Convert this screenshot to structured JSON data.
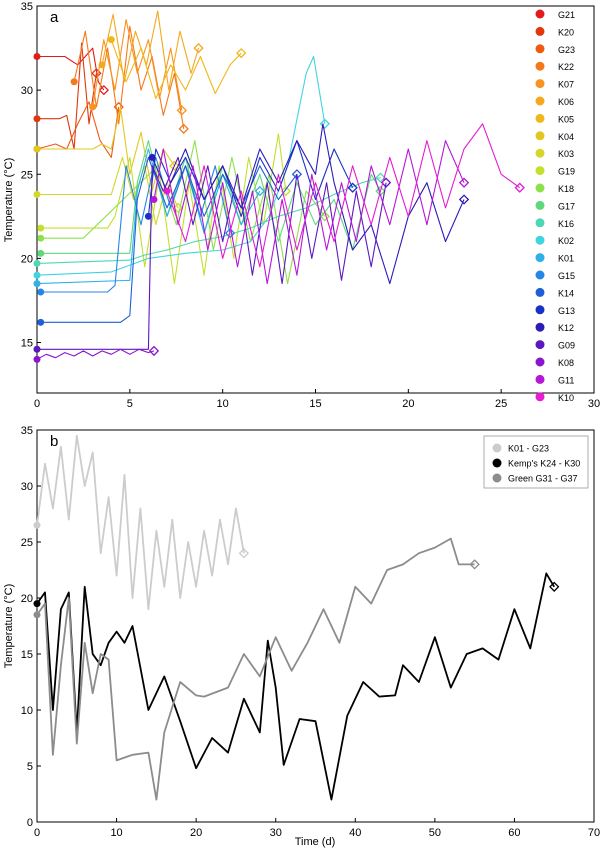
{
  "figure": {
    "panels": [
      {
        "label": "a",
        "ylabel": "Temperature (°C)",
        "xlabel": "",
        "xticks": [
          "0",
          "5",
          "10",
          "15",
          "20",
          "25",
          "30"
        ],
        "yticks": [
          "15",
          "20",
          "25",
          "30",
          "35"
        ]
      },
      {
        "label": "b",
        "ylabel": "Temperature (°C)",
        "xlabel": "Time (d)",
        "xticks": [
          "0",
          "10",
          "20",
          "30",
          "40",
          "50",
          "60",
          "70"
        ],
        "yticks": [
          "0",
          "5",
          "10",
          "15",
          "20",
          "25",
          "30",
          "35"
        ]
      }
    ]
  },
  "chart_data": [
    {
      "type": "line",
      "panel": "a",
      "xlim": [
        0,
        30
      ],
      "ylim": [
        12,
        35
      ],
      "ylabel": "Temperature (°C)",
      "legend": "right",
      "grid": false,
      "series": [
        {
          "name": "G21",
          "color": "#e31a1c",
          "x": [
            0,
            1.5,
            2.2,
            3.0,
            3.3,
            3.6
          ],
          "y": [
            32,
            32,
            31.5,
            32.5,
            30.5,
            30.0
          ]
        },
        {
          "name": "K20",
          "color": "#e3360c",
          "x": [
            0,
            0.8,
            1.2,
            1.6,
            2.0,
            2.4,
            2.8,
            3.2
          ],
          "y": [
            28.3,
            28.3,
            28.3,
            28.5,
            26.5,
            32.8,
            28.0,
            31.0
          ]
        },
        {
          "name": "G23",
          "color": "#ef5a10",
          "x": [
            0,
            1.0,
            1.6,
            2.2,
            2.8,
            3.4,
            4.0,
            4.4
          ],
          "y": [
            26.5,
            26.8,
            26.5,
            28.0,
            29.3,
            27.0,
            26.0,
            29.0
          ]
        },
        {
          "name": "K22",
          "color": "#f5781a",
          "x": [
            2.0,
            2.6,
            3.2,
            3.8,
            4.4,
            5.0,
            5.6,
            6.2,
            6.8,
            7.4,
            7.9
          ],
          "y": [
            30.5,
            33.5,
            29.0,
            32.5,
            28.0,
            33.8,
            30.0,
            32.0,
            28.5,
            31.0,
            27.7
          ]
        },
        {
          "name": "K07",
          "color": "#f8931e",
          "x": [
            3.0,
            3.6,
            4.2,
            4.8,
            5.4,
            6.0,
            6.6,
            7.2,
            7.8
          ],
          "y": [
            29.0,
            33.0,
            30.0,
            34.2,
            31.0,
            33.0,
            29.5,
            32.5,
            28.8
          ]
        },
        {
          "name": "K06",
          "color": "#f6a81c",
          "x": [
            3.5,
            4.1,
            4.7,
            5.3,
            5.9,
            6.5,
            7.1,
            7.7,
            8.3,
            8.7
          ],
          "y": [
            31.5,
            34.5,
            30.5,
            33.5,
            31.5,
            34.7,
            30.0,
            33.5,
            31.0,
            32.5
          ]
        },
        {
          "name": "K05",
          "color": "#efb81a",
          "x": [
            4.0,
            4.8,
            5.6,
            6.4,
            7.2,
            8.0,
            8.8,
            9.6,
            10.4,
            11.0
          ],
          "y": [
            33.0,
            30.5,
            32.5,
            29.5,
            31.5,
            30.0,
            32.0,
            29.8,
            31.5,
            32.2
          ]
        },
        {
          "name": "K04",
          "color": "#e2c81e",
          "x": [
            0,
            3.0,
            3.5,
            4.0,
            4.5,
            5.0,
            5.6,
            6.2,
            6.8,
            7.4
          ],
          "y": [
            26.5,
            26.5,
            26.8,
            26.5,
            29.0,
            25.0,
            27.5,
            24.0,
            26.5,
            25.5
          ]
        },
        {
          "name": "K03",
          "color": "#d4d628",
          "x": [
            0,
            3.5,
            4.0,
            4.6,
            5.2,
            5.8,
            6.4,
            7.0,
            7.6
          ],
          "y": [
            23.8,
            23.8,
            23.8,
            26.0,
            23.5,
            25.5,
            22.0,
            24.5,
            23.0
          ]
        },
        {
          "name": "G19",
          "color": "#c2e02e",
          "x": [
            0.2,
            3.8,
            4.2,
            5.0,
            5.8,
            6.6,
            7.4,
            8.2,
            9.0,
            9.8,
            10.6,
            11.4,
            12.2,
            13.0,
            13.4
          ],
          "y": [
            21.8,
            21.8,
            22.5,
            26.0,
            19.5,
            25.0,
            18.5,
            24.5,
            19.0,
            25.5,
            20.0,
            26.0,
            22.0,
            27.4,
            24.0
          ]
        },
        {
          "name": "K18",
          "color": "#8ee04a",
          "x": [
            0.2,
            2.5,
            6.5,
            7.5,
            8.5,
            9.5,
            10.5,
            11.5,
            12.5,
            13.5,
            14.5,
            15.5
          ],
          "y": [
            21.2,
            21.2,
            25.5,
            22.0,
            27.0,
            20.5,
            26.0,
            21.0,
            25.0,
            18.5,
            24.0,
            22.5
          ]
        },
        {
          "name": "G17",
          "color": "#5fd87a",
          "x": [
            0.2,
            5.0,
            5.4,
            6.0,
            7.0,
            8.0,
            9.0,
            10.0,
            11.0,
            12.0,
            13.0,
            14.0,
            15.0,
            16.0,
            17.0,
            18.0,
            18.5
          ],
          "y": [
            20.3,
            20.3,
            24.5,
            27.0,
            22.5,
            26.0,
            21.5,
            25.5,
            22.0,
            25.0,
            21.0,
            24.5,
            22.0,
            23.5,
            20.5,
            25.0,
            24.0
          ]
        },
        {
          "name": "K16",
          "color": "#4cd8b5",
          "x": [
            0,
            5.0,
            5.8,
            7.0,
            8.5,
            10.0,
            11.5,
            13.0,
            14.5,
            16.0,
            17.5,
            18.5
          ],
          "y": [
            19.7,
            19.9,
            20.2,
            20.5,
            21.0,
            21.3,
            21.8,
            22.5,
            23.0,
            23.8,
            24.5,
            24.8
          ]
        },
        {
          "name": "K02",
          "color": "#40d4e0",
          "x": [
            0,
            4.0,
            6.0,
            8.0,
            10.0,
            11.5,
            12.5,
            13.5,
            14.5,
            14.9,
            15.5
          ],
          "y": [
            19.0,
            19.2,
            20.0,
            20.3,
            20.5,
            21.0,
            22.5,
            25.5,
            31.0,
            32.0,
            28.0
          ]
        },
        {
          "name": "K01",
          "color": "#2eb0ea",
          "x": [
            0,
            5.0,
            5.4,
            6.0,
            7.0,
            8.0,
            9.0,
            10.0,
            11.0,
            12.0
          ],
          "y": [
            18.5,
            18.7,
            24.0,
            26.5,
            22.5,
            25.5,
            21.5,
            25.0,
            22.0,
            24.0
          ]
        },
        {
          "name": "G15",
          "color": "#2586e6",
          "x": [
            0.2,
            3.8,
            4.2,
            4.8,
            5.6,
            6.4,
            7.2,
            8.0,
            8.8,
            9.6,
            10.4
          ],
          "y": [
            18.0,
            18.0,
            18.4,
            25.5,
            22.0,
            26.0,
            23.0,
            25.5,
            22.5,
            25.5,
            21.5
          ]
        },
        {
          "name": "K14",
          "color": "#1e5fd8",
          "x": [
            0.2,
            4.5,
            5.0,
            5.4,
            6.0,
            7.0,
            8.0,
            9.0,
            10.0,
            11.0,
            12.0,
            13.0,
            14.0
          ],
          "y": [
            16.2,
            16.2,
            16.6,
            23.5,
            26.0,
            23.0,
            25.5,
            22.5,
            25.0,
            23.0,
            25.5,
            23.5,
            25.0
          ]
        },
        {
          "name": "G13",
          "color": "#1832c8",
          "x": [
            6.0,
            6.4,
            7.2,
            8.0,
            9.0,
            10.0,
            11.0,
            12.0,
            13.0,
            14.0,
            15.0,
            16.0,
            17.0
          ],
          "y": [
            22.5,
            26.5,
            24.5,
            26.0,
            23.5,
            25.5,
            22.5,
            26.0,
            24.0,
            27.0,
            23.5,
            26.5,
            24.2
          ]
        },
        {
          "name": "K12",
          "color": "#2c1cb8",
          "x": [
            6.2,
            7.0,
            8.0,
            9.0,
            10.0,
            11.0,
            12.0,
            13.0,
            14.0,
            15.0,
            15.4,
            16.0,
            17.0,
            18.0,
            19.0,
            20.0,
            21.0,
            22.0,
            23.0
          ],
          "y": [
            26.0,
            24.0,
            26.5,
            23.5,
            25.5,
            23.0,
            26.5,
            24.5,
            27.0,
            25.0,
            28.0,
            24.5,
            20.5,
            22.0,
            18.5,
            22.5,
            24.5,
            21.0,
            23.5
          ]
        },
        {
          "name": "G09",
          "color": "#5a18c0",
          "x": [
            0,
            6.0,
            6.2,
            6.8,
            7.6,
            8.4,
            9.2,
            10.0,
            10.8,
            11.6,
            12.4,
            13.2,
            14.0,
            14.8,
            15.6,
            16.4,
            17.2,
            18.0,
            18.8
          ],
          "y": [
            14.6,
            14.6,
            25.5,
            24.0,
            26.0,
            22.0,
            25.5,
            21.0,
            25.0,
            19.0,
            24.5,
            18.5,
            25.0,
            20.0,
            24.5,
            18.7,
            24.0,
            19.5,
            24.5
          ]
        },
        {
          "name": "K08",
          "color": "#8a14d0",
          "x": [
            0,
            0.5,
            1.0,
            1.5,
            2.0,
            2.5,
            3.0,
            3.5,
            4.0,
            4.5,
            5.0,
            5.5,
            6.0,
            6.3
          ],
          "y": [
            14.0,
            14.3,
            14.1,
            14.4,
            14.2,
            14.5,
            14.2,
            14.5,
            14.3,
            14.6,
            14.3,
            14.6,
            14.4,
            14.5
          ]
        },
        {
          "name": "G11",
          "color": "#b616d8",
          "x": [
            6.3,
            6.8,
            7.6,
            8.4,
            9.2,
            10.0,
            10.8,
            11.6,
            12.4,
            13.2,
            14.0,
            14.8,
            15.6,
            16.4,
            17.2,
            18.0,
            19.0,
            20.0,
            21.0,
            22.0,
            23.0
          ],
          "y": [
            23.5,
            26.5,
            22.0,
            25.5,
            20.5,
            24.5,
            19.5,
            24.0,
            18.5,
            23.5,
            19.0,
            25.0,
            20.5,
            24.5,
            21.0,
            25.5,
            22.0,
            26.5,
            22.0,
            27.0,
            24.5
          ]
        },
        {
          "name": "K10",
          "color": "#e61cd0",
          "x": [
            7.0,
            8.0,
            9.0,
            10.0,
            11.0,
            12.0,
            13.0,
            14.0,
            15.0,
            16.0,
            17.0,
            18.0,
            19.0,
            20.0,
            21.0,
            22.0,
            23.0,
            24.0,
            25.0,
            26.0
          ],
          "y": [
            24.0,
            21.0,
            25.5,
            20.0,
            24.0,
            19.5,
            25.0,
            20.5,
            24.5,
            21.0,
            25.5,
            22.0,
            26.0,
            22.5,
            27.0,
            23.0,
            26.5,
            28.0,
            25.0,
            24.2
          ]
        }
      ]
    },
    {
      "type": "line",
      "panel": "b",
      "xlim": [
        0,
        70
      ],
      "ylim": [
        0,
        35
      ],
      "xlabel": "Time (d)",
      "ylabel": "Temperature (°C)",
      "legend": "top-right",
      "grid": false,
      "series": [
        {
          "name": "K01 - G23",
          "color": "#cccccc",
          "x": [
            0,
            1,
            2,
            3,
            4,
            5,
            6,
            7,
            8,
            9,
            10,
            11,
            12,
            13,
            14,
            15,
            16,
            17,
            18,
            19,
            20,
            21,
            22,
            23,
            24,
            25,
            26
          ],
          "y": [
            26.5,
            32,
            28,
            33.5,
            27,
            34.5,
            30,
            33,
            24,
            29,
            22,
            31,
            20,
            28,
            19,
            26,
            21,
            27,
            20,
            25,
            21,
            26,
            22,
            27,
            23,
            28,
            24
          ]
        },
        {
          "name": "Kemp's K24 - K30",
          "color": "#000000",
          "x": [
            0,
            1,
            2,
            3,
            4,
            5,
            6,
            7,
            8,
            9,
            10,
            11,
            12,
            14,
            16,
            18,
            20,
            22,
            24,
            26,
            28,
            29,
            30,
            31,
            33,
            35,
            37,
            39,
            41,
            43,
            45,
            46,
            48,
            50,
            52,
            54,
            56,
            58,
            60,
            62,
            64,
            65
          ],
          "y": [
            19.5,
            20.5,
            10,
            19,
            20.5,
            8,
            21,
            15,
            14,
            16,
            17,
            16,
            17.5,
            10,
            13,
            9,
            4.8,
            7.5,
            6.2,
            11,
            8,
            16.2,
            12,
            5.1,
            9.2,
            9,
            2,
            9.5,
            12.5,
            11.2,
            11.3,
            14,
            12.5,
            16.5,
            12,
            15,
            15.5,
            14.5,
            19,
            15.5,
            22.2,
            21
          ]
        },
        {
          "name": "Green G31 - G37",
          "color": "#8c8c8c",
          "x": [
            0,
            1,
            2,
            3,
            4,
            5,
            6,
            7,
            8,
            9,
            10,
            12,
            14,
            15,
            16,
            18,
            20,
            21,
            24,
            26,
            28,
            30,
            32,
            34,
            36,
            38,
            40,
            42,
            44,
            46,
            48,
            50,
            52,
            53,
            55
          ],
          "y": [
            18.5,
            19.5,
            6,
            14,
            20,
            7,
            16,
            11.5,
            15,
            14.5,
            5.5,
            6,
            6.2,
            2,
            8,
            12.5,
            11.3,
            11.2,
            12,
            15,
            13,
            16.5,
            13.5,
            16,
            19,
            16,
            21,
            19.5,
            22.5,
            23,
            24,
            24.5,
            25.3,
            23,
            23
          ]
        }
      ]
    }
  ]
}
